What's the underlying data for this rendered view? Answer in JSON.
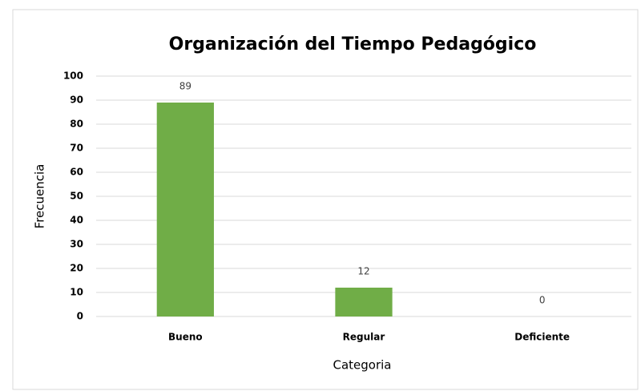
{
  "chart_data": {
    "type": "bar",
    "title": "Organización del Tiempo Pedagógico",
    "x_label": "Categoria",
    "y_label": "Frecuencia",
    "categories": [
      "Bueno",
      "Regular",
      "Deficiente"
    ],
    "values": [
      89,
      12,
      0
    ],
    "color": "#70ad47",
    "ylim": [
      0,
      100
    ],
    "yticks": [
      0,
      10,
      20,
      30,
      40,
      50,
      60,
      70,
      80,
      90,
      100
    ],
    "grid": true
  }
}
